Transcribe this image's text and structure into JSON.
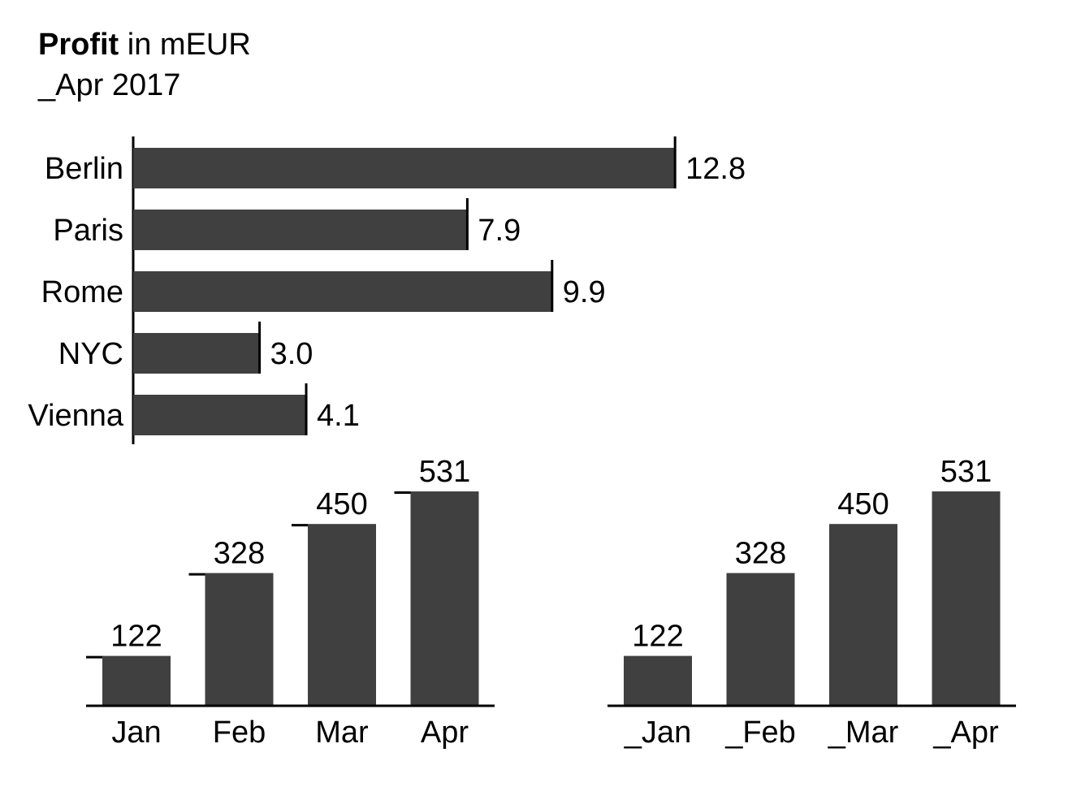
{
  "title": {
    "bold": "Profit",
    "rest": " in mEUR"
  },
  "subtitle": "_Apr 2017",
  "colors": {
    "bar": "#404040",
    "axis": "#000000",
    "background": "#ffffff"
  },
  "chart_data": [
    {
      "type": "bar",
      "orientation": "horizontal",
      "title": "Profit in mEUR",
      "subtitle": "_Apr 2017",
      "categories": [
        "Berlin",
        "Paris",
        "Rome",
        "NYC",
        "Vienna"
      ],
      "values": [
        12.8,
        7.9,
        9.9,
        3.0,
        4.1
      ],
      "value_labels": [
        "12.8",
        "7.9",
        "9.9",
        "3.0",
        "4.1"
      ]
    },
    {
      "type": "bar",
      "orientation": "vertical",
      "categories": [
        "Jan",
        "Feb",
        "Mar",
        "Apr"
      ],
      "values": [
        122,
        328,
        450,
        531
      ],
      "value_labels": [
        "122",
        "328",
        "450",
        "531"
      ],
      "previous_value_markers": true
    },
    {
      "type": "bar",
      "orientation": "vertical",
      "categories": [
        "_Jan",
        "_Feb",
        "_Mar",
        "_Apr"
      ],
      "values": [
        122,
        328,
        450,
        531
      ],
      "value_labels": [
        "122",
        "328",
        "450",
        "531"
      ],
      "previous_value_markers": false
    }
  ]
}
